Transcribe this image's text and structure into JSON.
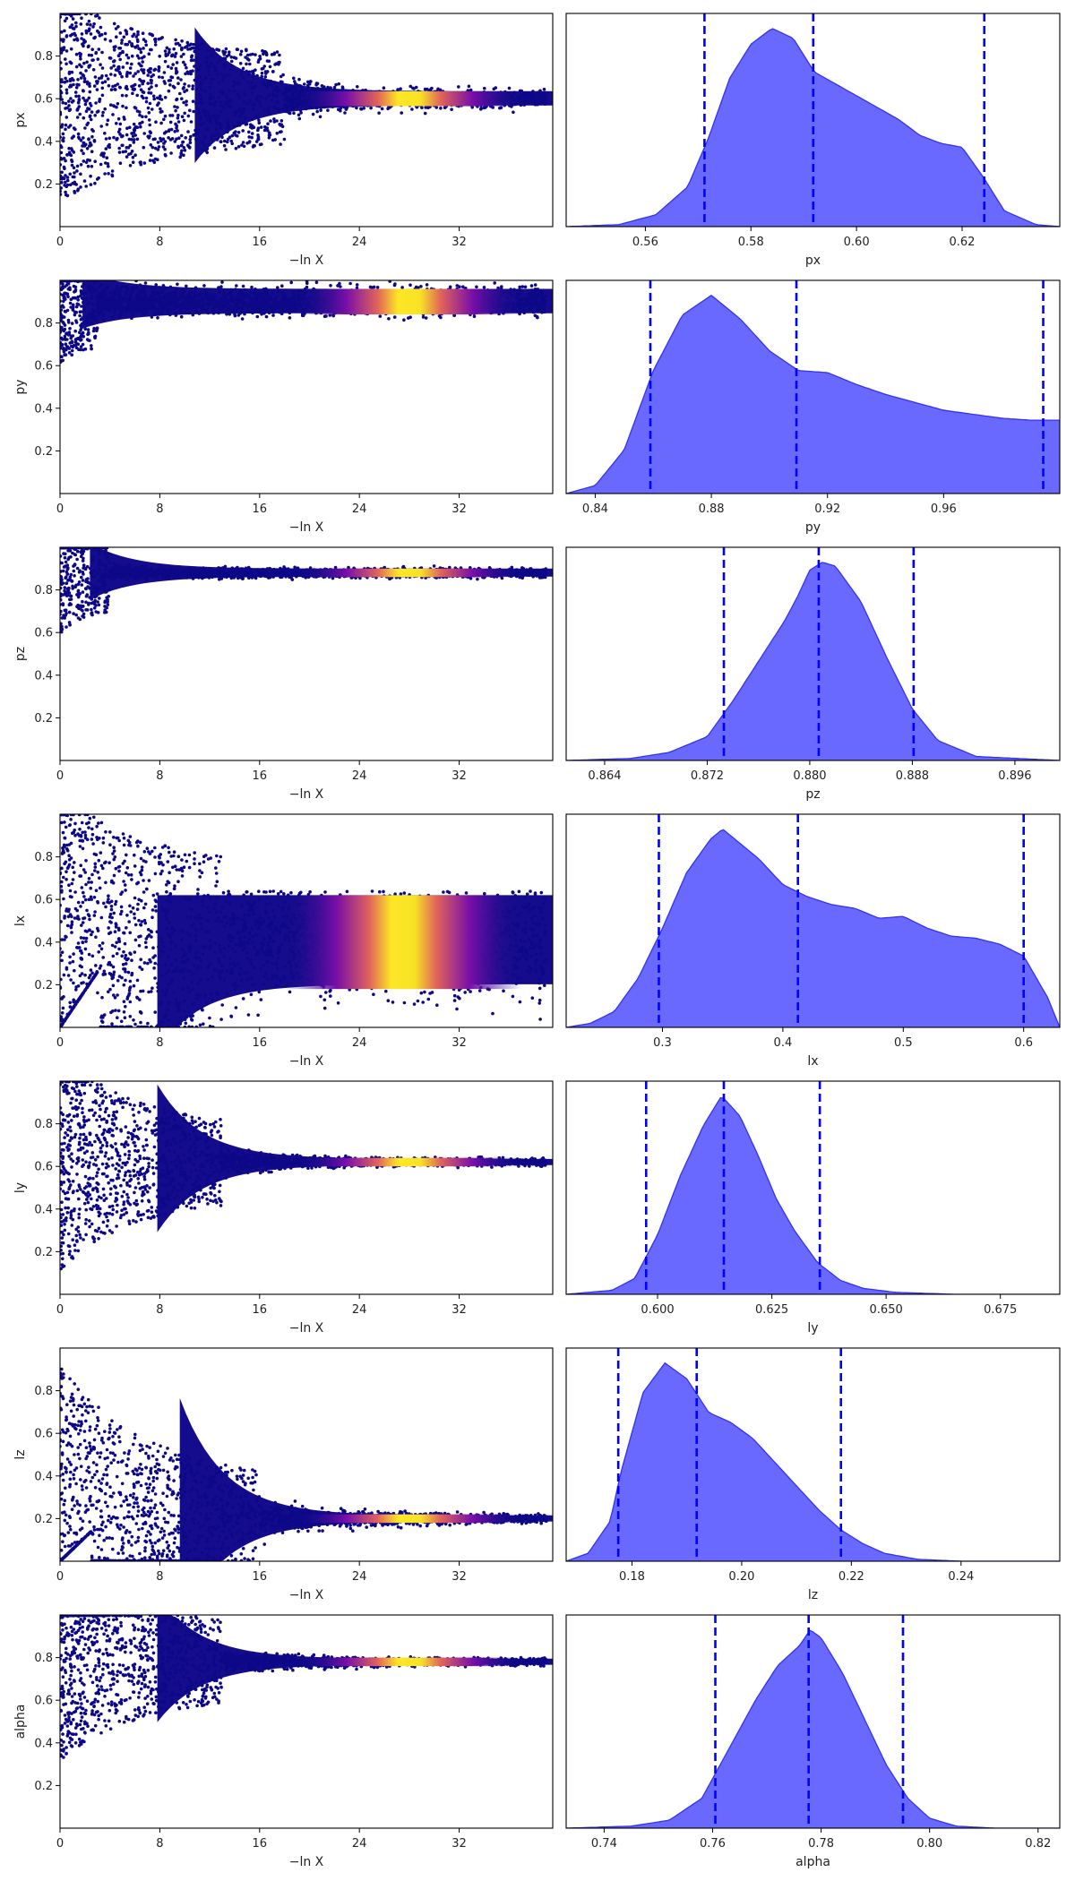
{
  "chart_data": {
    "type": "scatter",
    "layout": "trace-plot",
    "colormap": "plasma",
    "density_fill_color": "#6666ff",
    "density_edge_color": "#3333ee",
    "quantile_line_color": "#0000ff",
    "trace_x": {
      "label": "−ln X",
      "ticks": [
        "0",
        "8",
        "16",
        "24",
        "32"
      ],
      "range": [
        0,
        39.5
      ]
    },
    "params": [
      {
        "name": "px",
        "trace": {
          "range": [
            0,
            1
          ],
          "ticks": [
            "0.2",
            "0.4",
            "0.6",
            "0.8"
          ],
          "converged": 0.6,
          "spread": 0.3,
          "plateau_width": 0.035,
          "collapse": 18,
          "bright_band": [
            24,
            31
          ],
          "lower_floor": [
            0.0,
            0.0,
            0.4
          ],
          "upper_cap": 1.0
        },
        "density": {
          "range": [
            0.545,
            0.6385
          ],
          "ticks": [
            "0.56",
            "0.58",
            "0.60",
            "0.62"
          ],
          "x": [
            0.545,
            0.555,
            0.562,
            0.568,
            0.572,
            0.576,
            0.58,
            0.584,
            0.588,
            0.592,
            0.596,
            0.6,
            0.604,
            0.608,
            0.612,
            0.616,
            0.62,
            0.624,
            0.628,
            0.634,
            0.6385
          ],
          "y": [
            0.0,
            0.01,
            0.06,
            0.2,
            0.45,
            0.75,
            0.92,
            1.0,
            0.95,
            0.78,
            0.72,
            0.66,
            0.6,
            0.54,
            0.46,
            0.42,
            0.4,
            0.25,
            0.08,
            0.01,
            0.0
          ],
          "quantiles": [
            0.5712,
            0.5918,
            0.6242
          ]
        }
      },
      {
        "name": "py",
        "trace": {
          "range": [
            0,
            1
          ],
          "ticks": [
            "0.2",
            "0.4",
            "0.6",
            "0.8"
          ],
          "converged": 0.9,
          "spread": 0.08,
          "plateau_width": 0.06,
          "collapse": 3,
          "bright_band": [
            24,
            31
          ],
          "lower_floor": [
            0.0,
            0.78,
            0.3
          ],
          "upper_cap": 1.0
        },
        "density": {
          "range": [
            0.83,
            1.0
          ],
          "ticks": [
            "0.84",
            "0.88",
            "0.92",
            "0.96"
          ],
          "x": [
            0.83,
            0.84,
            0.85,
            0.86,
            0.87,
            0.88,
            0.89,
            0.9,
            0.91,
            0.92,
            0.93,
            0.94,
            0.95,
            0.96,
            0.97,
            0.98,
            0.99,
            1.0
          ],
          "y": [
            0.0,
            0.04,
            0.22,
            0.62,
            0.9,
            1.0,
            0.88,
            0.72,
            0.62,
            0.61,
            0.55,
            0.5,
            0.46,
            0.42,
            0.4,
            0.38,
            0.37,
            0.37
          ],
          "quantiles": [
            0.859,
            0.9093,
            0.9943
          ]
        }
      },
      {
        "name": "pz",
        "trace": {
          "range": [
            0,
            1
          ],
          "ticks": [
            "0.2",
            "0.4",
            "0.6",
            "0.8"
          ],
          "converged": 0.88,
          "spread": 0.12,
          "plateau_width": 0.02,
          "collapse": 4,
          "bright_band": [
            24,
            31
          ],
          "lower_floor": [
            0.0,
            0.8,
            0.25
          ],
          "upper_cap": 1.0
        },
        "density": {
          "range": [
            0.861,
            0.8995
          ],
          "ticks": [
            "0.864",
            "0.872",
            "0.880",
            "0.888",
            "0.896"
          ],
          "x": [
            0.861,
            0.866,
            0.869,
            0.872,
            0.874,
            0.876,
            0.878,
            0.879,
            0.88,
            0.881,
            0.882,
            0.884,
            0.886,
            0.888,
            0.89,
            0.893,
            0.8995
          ],
          "y": [
            0.0,
            0.01,
            0.04,
            0.12,
            0.3,
            0.5,
            0.7,
            0.82,
            0.96,
            1.0,
            0.98,
            0.8,
            0.52,
            0.26,
            0.1,
            0.02,
            0.0
          ],
          "quantiles": [
            0.8733,
            0.8807,
            0.8881
          ]
        }
      },
      {
        "name": "lx",
        "trace": {
          "range": [
            0,
            1
          ],
          "ticks": [
            "0.2",
            "0.4",
            "0.6",
            "0.8"
          ],
          "converged": 0.4,
          "spread": 0.35,
          "plateau_width": 0.22,
          "collapse": 13,
          "bright_band": [
            23,
            31
          ],
          "lower_floor": [
            0.0,
            0.26,
            0.3
          ],
          "upper_cap": 0.62
        },
        "density": {
          "range": [
            0.22,
            0.63
          ],
          "ticks": [
            "0.3",
            "0.4",
            "0.5",
            "0.6"
          ],
          "x": [
            0.22,
            0.24,
            0.26,
            0.28,
            0.3,
            0.32,
            0.34,
            0.35,
            0.36,
            0.38,
            0.4,
            0.42,
            0.44,
            0.46,
            0.48,
            0.5,
            0.52,
            0.54,
            0.56,
            0.58,
            0.6,
            0.62,
            0.63
          ],
          "y": [
            0.0,
            0.02,
            0.08,
            0.25,
            0.5,
            0.78,
            0.95,
            1.0,
            0.95,
            0.85,
            0.72,
            0.66,
            0.62,
            0.6,
            0.55,
            0.56,
            0.5,
            0.46,
            0.45,
            0.42,
            0.36,
            0.15,
            0.0
          ],
          "quantiles": [
            0.297,
            0.4125,
            0.6
          ]
        }
      },
      {
        "name": "ly",
        "trace": {
          "range": [
            0,
            1
          ],
          "ticks": [
            "0.2",
            "0.4",
            "0.6",
            "0.8"
          ],
          "converged": 0.62,
          "spread": 0.35,
          "plateau_width": 0.015,
          "collapse": 13,
          "bright_band": [
            24,
            31
          ],
          "lower_floor": [
            0.0,
            0.0,
            0.4
          ],
          "upper_cap": 1.0
        },
        "density": {
          "range": [
            0.58,
            0.688
          ],
          "ticks": [
            "0.600",
            "0.625",
            "0.650",
            "0.675"
          ],
          "x": [
            0.58,
            0.59,
            0.595,
            0.6,
            0.605,
            0.61,
            0.614,
            0.618,
            0.622,
            0.626,
            0.63,
            0.635,
            0.64,
            0.645,
            0.652,
            0.665,
            0.688
          ],
          "y": [
            0.0,
            0.02,
            0.08,
            0.3,
            0.6,
            0.85,
            1.0,
            0.9,
            0.7,
            0.48,
            0.32,
            0.16,
            0.07,
            0.03,
            0.01,
            0.0,
            0.0
          ],
          "quantiles": [
            0.5975,
            0.6145,
            0.6355
          ]
        }
      },
      {
        "name": "lz",
        "trace": {
          "range": [
            0,
            1
          ],
          "ticks": [
            "0.2",
            "0.4",
            "0.6",
            "0.8"
          ],
          "converged": 0.2,
          "spread": 0.55,
          "plateau_width": 0.015,
          "collapse": 16,
          "bright_band": [
            24,
            31
          ],
          "lower_floor": [
            0.0,
            0.14,
            0.25
          ],
          "upper_cap": 1.0
        },
        "density": {
          "range": [
            0.168,
            0.258
          ],
          "ticks": [
            "0.18",
            "0.20",
            "0.22",
            "0.24"
          ],
          "x": [
            0.168,
            0.172,
            0.176,
            0.178,
            0.182,
            0.186,
            0.19,
            0.194,
            0.198,
            0.202,
            0.206,
            0.21,
            0.214,
            0.218,
            0.222,
            0.226,
            0.232,
            0.24,
            0.258
          ],
          "y": [
            0.0,
            0.04,
            0.2,
            0.45,
            0.85,
            1.0,
            0.92,
            0.75,
            0.7,
            0.62,
            0.5,
            0.38,
            0.26,
            0.16,
            0.09,
            0.04,
            0.01,
            0.0,
            0.0
          ],
          "quantiles": [
            0.1775,
            0.1918,
            0.2181
          ]
        }
      },
      {
        "name": "alpha",
        "trace": {
          "range": [
            0,
            1
          ],
          "ticks": [
            "0.2",
            "0.4",
            "0.6",
            "0.8"
          ],
          "converged": 0.78,
          "spread": 0.3,
          "plateau_width": 0.015,
          "collapse": 13,
          "bright_band": [
            24,
            31
          ],
          "lower_floor": [
            0.0,
            0.0,
            0.4
          ],
          "upper_cap": 1.0
        },
        "density": {
          "range": [
            0.733,
            0.824
          ],
          "ticks": [
            "0.74",
            "0.76",
            "0.78",
            "0.80",
            "0.82"
          ],
          "x": [
            0.733,
            0.745,
            0.752,
            0.758,
            0.763,
            0.768,
            0.772,
            0.776,
            0.778,
            0.78,
            0.784,
            0.788,
            0.792,
            0.796,
            0.8,
            0.805,
            0.812,
            0.824
          ],
          "y": [
            0.0,
            0.01,
            0.04,
            0.15,
            0.4,
            0.65,
            0.82,
            0.92,
            1.0,
            0.96,
            0.78,
            0.55,
            0.32,
            0.15,
            0.05,
            0.01,
            0.0,
            0.0
          ],
          "quantiles": [
            0.7605,
            0.7777,
            0.7951
          ]
        }
      }
    ]
  }
}
